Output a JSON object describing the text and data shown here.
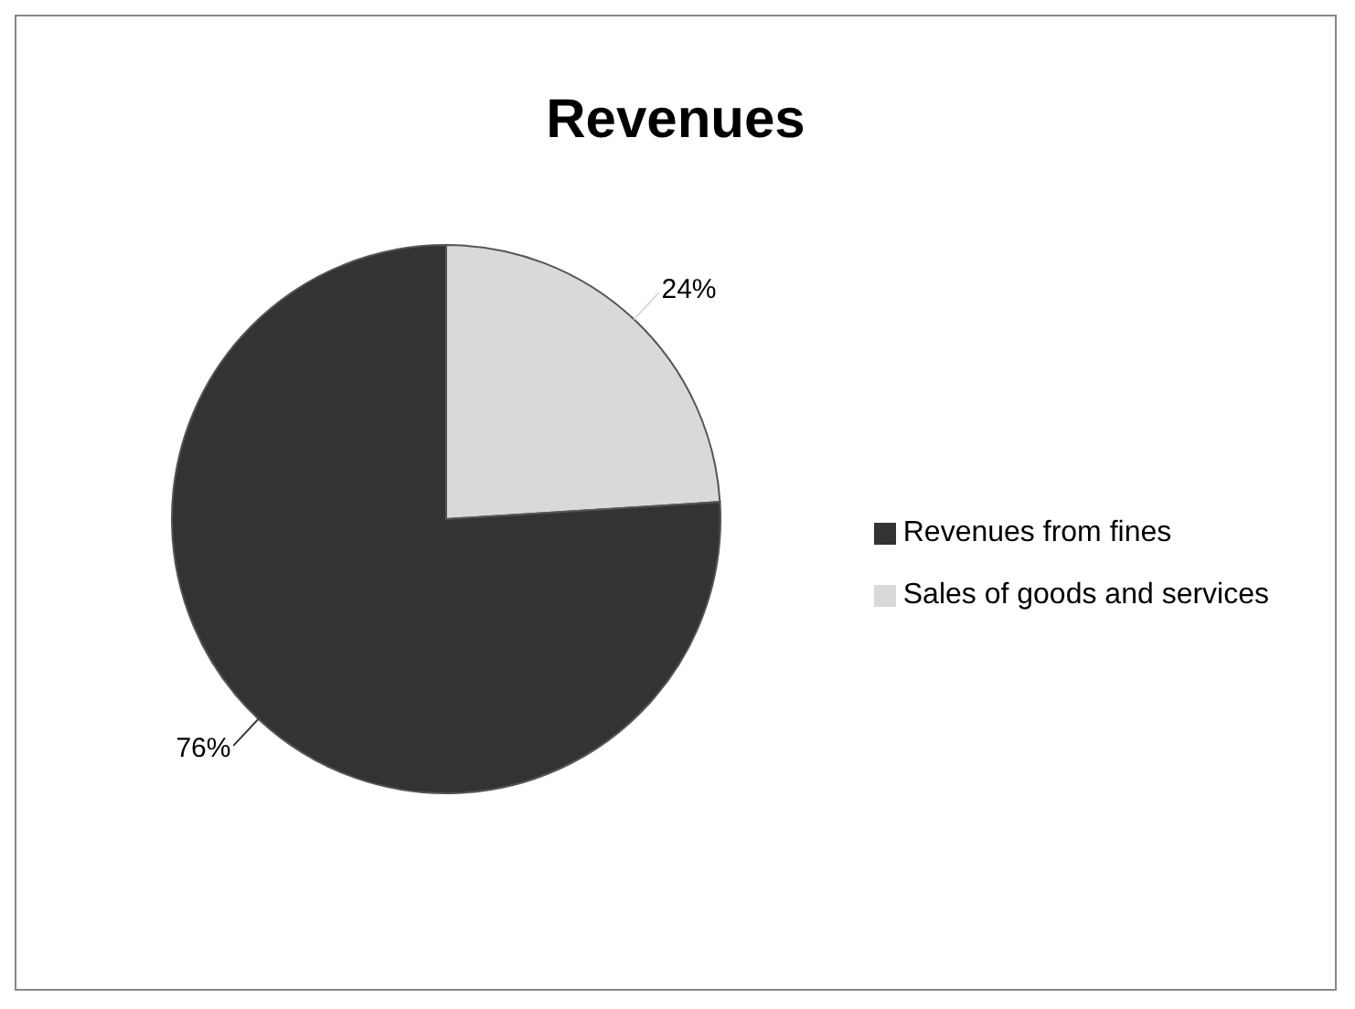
{
  "chart_data": {
    "type": "pie",
    "title": "Revenues",
    "categories": [
      "Sales of goods and services",
      "Revenues from fines"
    ],
    "values": [
      24,
      76
    ],
    "colors": [
      "#d9d9d9",
      "#333333"
    ],
    "value_labels": [
      "24%",
      "76%"
    ],
    "legend": "right"
  }
}
